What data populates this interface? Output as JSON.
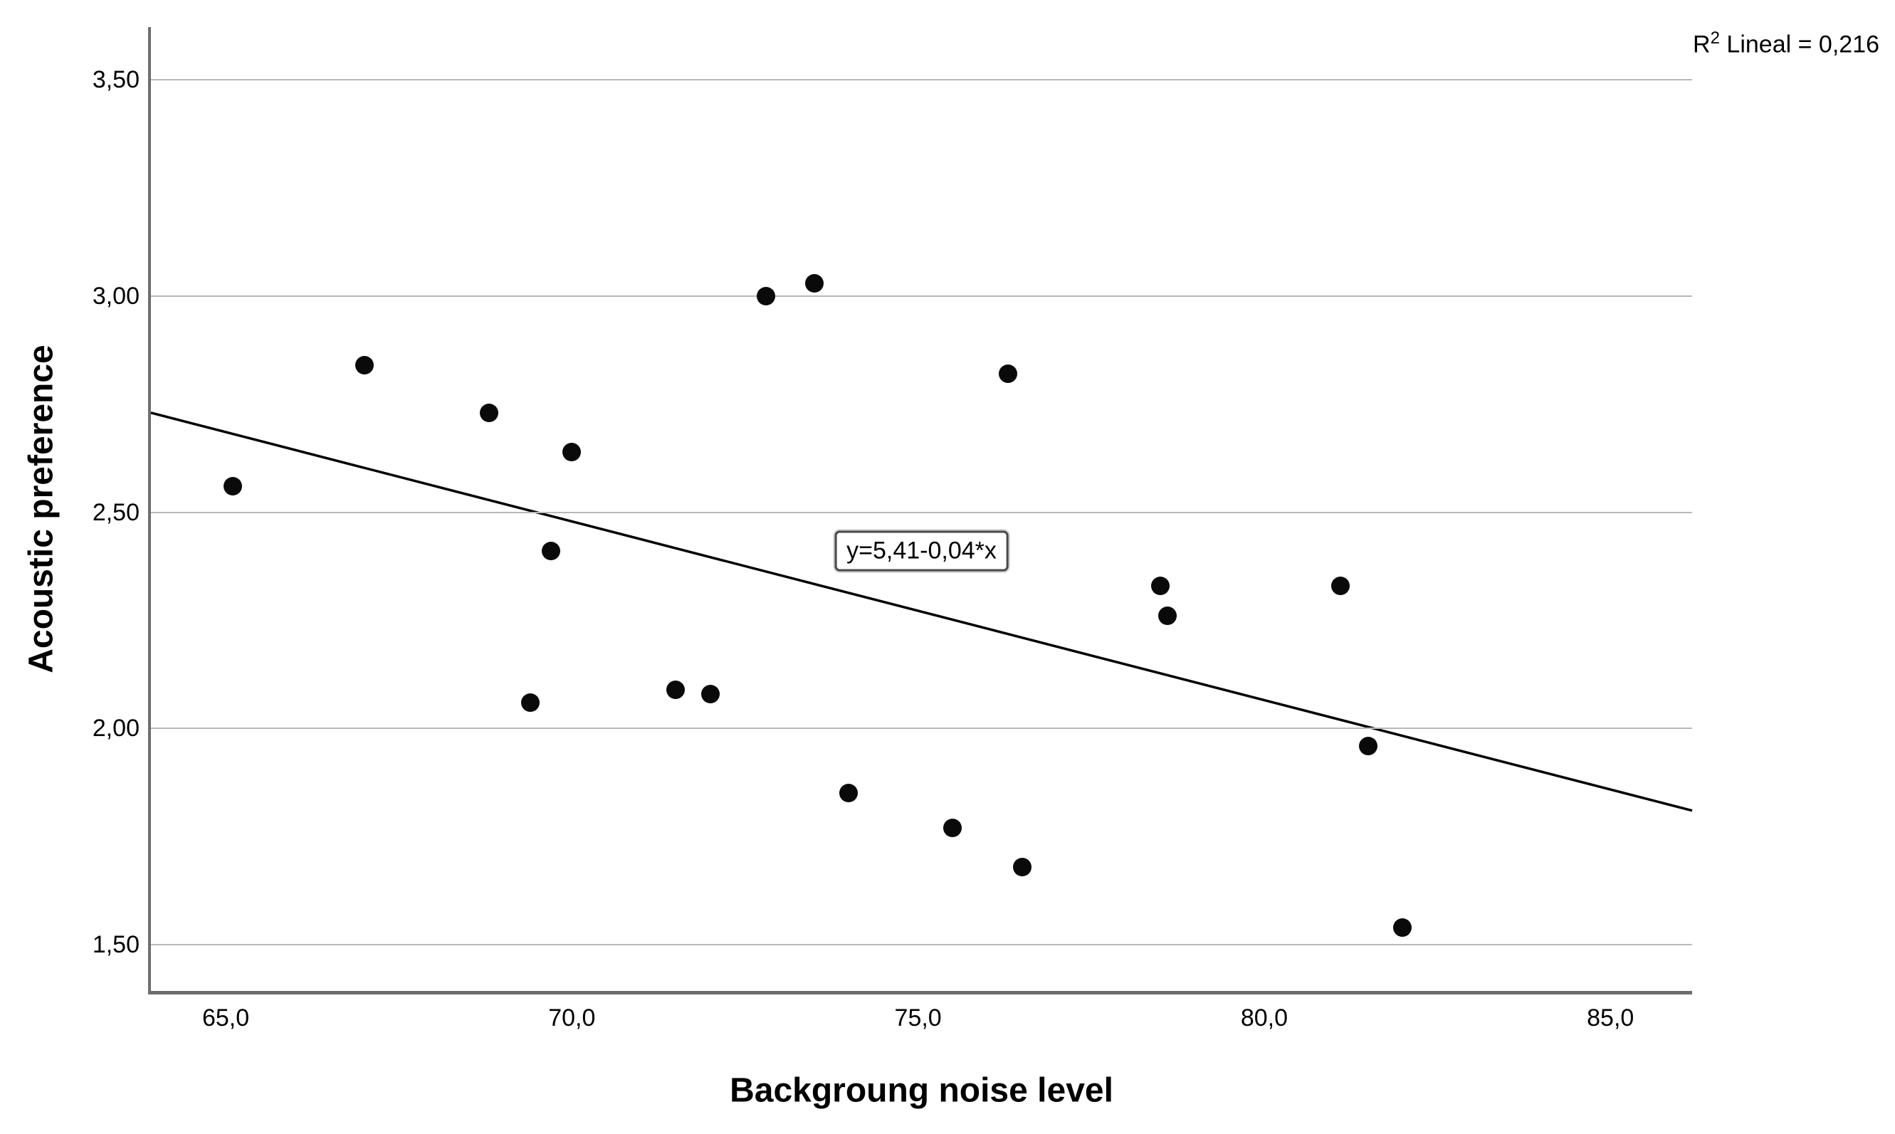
{
  "chart_data": {
    "type": "scatter",
    "title": "",
    "xlabel": "Backgroung noise level",
    "ylabel": "Acoustic preference",
    "r2_label_prefix": "R",
    "r2_label_sup": "2",
    "r2_label_rest": " Lineal = 0,216",
    "xlim": [
      63.92,
      86.18
    ],
    "ylim": [
      1.393,
      3.622
    ],
    "grid": "horizontal-only",
    "legend": "none",
    "x_ticks": [
      {
        "value": 65.0,
        "label": "65,0"
      },
      {
        "value": 70.0,
        "label": "70,0"
      },
      {
        "value": 75.0,
        "label": "75,0"
      },
      {
        "value": 80.0,
        "label": "80,0"
      },
      {
        "value": 85.0,
        "label": "85,0"
      }
    ],
    "y_ticks": [
      {
        "value": 3.5,
        "label": "3,50"
      },
      {
        "value": 3.0,
        "label": "3,00"
      },
      {
        "value": 2.5,
        "label": "2,50"
      },
      {
        "value": 2.0,
        "label": "2,00"
      },
      {
        "value": 1.5,
        "label": "1,50"
      }
    ],
    "points": [
      {
        "x": 65.1,
        "y": 2.56
      },
      {
        "x": 67.0,
        "y": 2.84
      },
      {
        "x": 68.8,
        "y": 2.73
      },
      {
        "x": 70.0,
        "y": 2.64
      },
      {
        "x": 69.7,
        "y": 2.41
      },
      {
        "x": 69.4,
        "y": 2.06
      },
      {
        "x": 71.5,
        "y": 2.09
      },
      {
        "x": 72.0,
        "y": 2.08
      },
      {
        "x": 72.8,
        "y": 3.0
      },
      {
        "x": 73.5,
        "y": 3.03
      },
      {
        "x": 74.0,
        "y": 1.85
      },
      {
        "x": 75.5,
        "y": 1.77
      },
      {
        "x": 76.3,
        "y": 2.82
      },
      {
        "x": 76.5,
        "y": 1.68
      },
      {
        "x": 78.5,
        "y": 2.33
      },
      {
        "x": 78.6,
        "y": 2.26
      },
      {
        "x": 81.1,
        "y": 2.33
      },
      {
        "x": 81.5,
        "y": 1.96
      },
      {
        "x": 82.0,
        "y": 1.54
      }
    ],
    "trendline": {
      "label": "y=5,41-0,04*x",
      "label_x": 75.05,
      "label_y": 2.41,
      "x1": 63.92,
      "y1": 2.73,
      "x2": 86.18,
      "y2": 1.81
    },
    "colors": {
      "point": "#0a0a0a",
      "trend": "#000000",
      "axis": "#6e6e6e",
      "grid": "#b8b8b8",
      "background": "#ffffff"
    }
  }
}
